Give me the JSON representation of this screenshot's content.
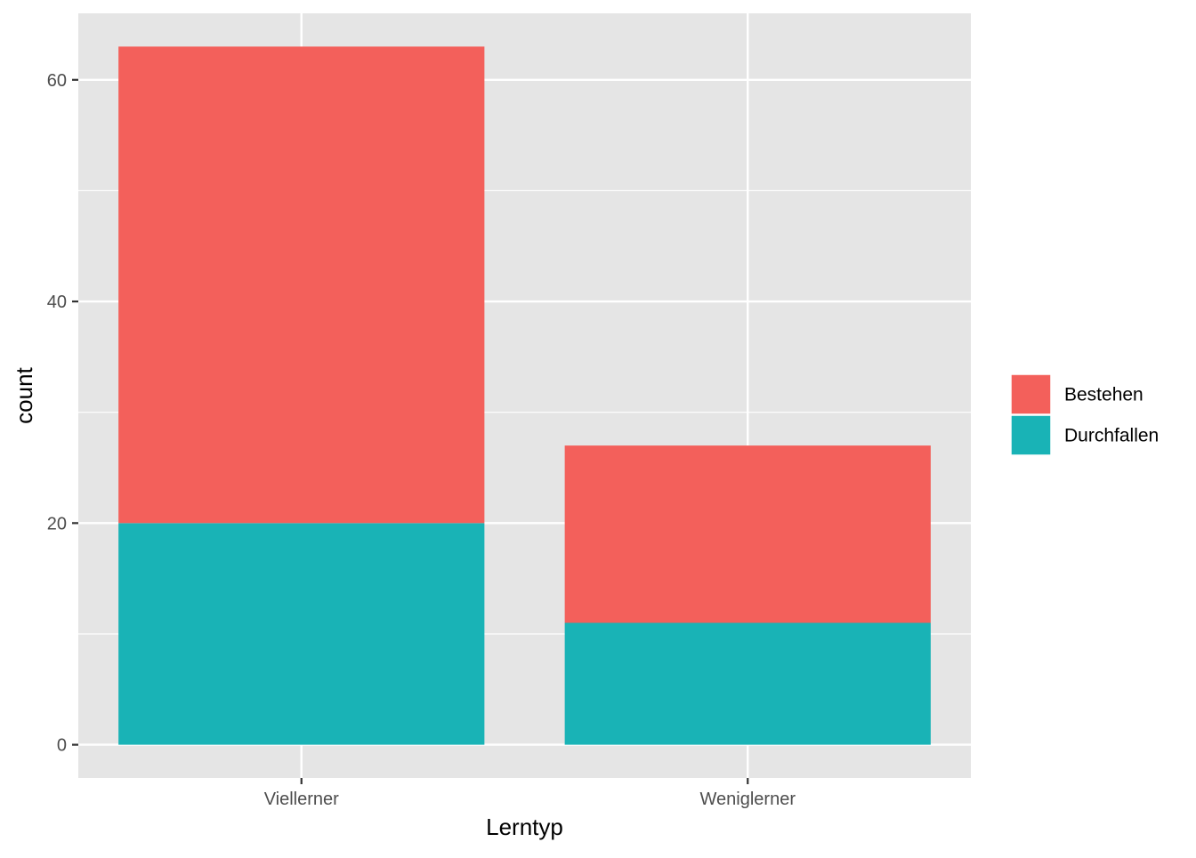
{
  "chart_data": {
    "type": "bar",
    "stacked": true,
    "categories": [
      "Viellerner",
      "Weniglerner"
    ],
    "series": [
      {
        "name": "Durchfallen",
        "values": [
          20,
          11
        ],
        "color": "#19B3B6"
      },
      {
        "name": "Bestehen",
        "values": [
          43,
          16
        ],
        "color": "#F3605B"
      }
    ],
    "xlabel": "Lerntyp",
    "ylabel": "count",
    "ylim": [
      -3,
      66
    ],
    "yticks": [
      0,
      20,
      40,
      60
    ],
    "legend": {
      "position": "right",
      "items": [
        {
          "label": "Bestehen",
          "color": "#F3605B"
        },
        {
          "label": "Durchfallen",
          "color": "#19B3B6"
        }
      ]
    },
    "grid": true,
    "panel_background": "#E5E5E5",
    "grid_color": "#FFFFFF"
  }
}
